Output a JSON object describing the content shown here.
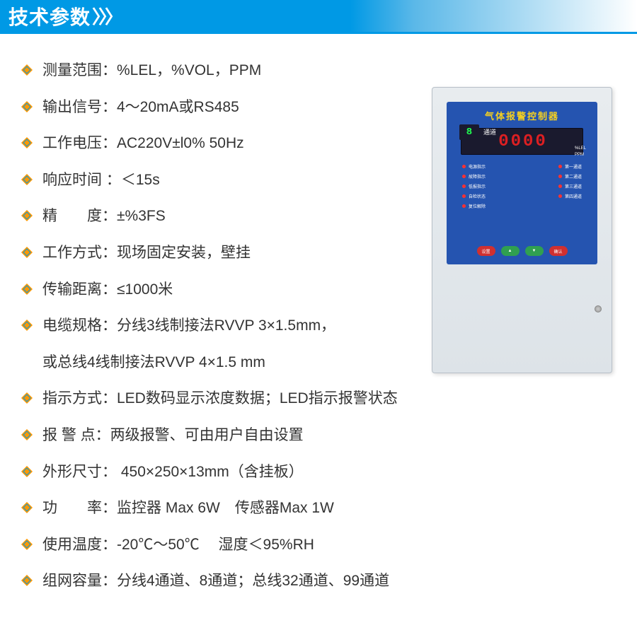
{
  "header": {
    "title": "技术参数",
    "arrows": "〉〉〉"
  },
  "bullet": {
    "fill": "#ff9800",
    "stroke": "#0099e5"
  },
  "specs": [
    {
      "text": "测量范围：%LEL，%VOL，PPM"
    },
    {
      "text": "输出信号：4～20mA或RS485"
    },
    {
      "text": "工作电压：AC220V±l0% 50Hz"
    },
    {
      "text": "响应时间 ：＜15s"
    },
    {
      "text": "精　　度：±%3FS"
    },
    {
      "text": "工作方式：现场固定安装，壁挂"
    },
    {
      "text": "传输距离：≤1000米"
    },
    {
      "text": "电缆规格：分线3线制接法RVVP 3×1.5mm，",
      "continuation": "或总线4线制接法RVVP 4×1.5 mm"
    },
    {
      "text": "指示方式：LED数码显示浓度数据；LED指示报警状态"
    },
    {
      "text": "报 警 点：两级报警、可由用户自由设置"
    },
    {
      "text": "外形尺寸： 450×250×13mm（含挂板）"
    },
    {
      "text": "功　　率：监控器 Max 6W　传感器Max 1W"
    },
    {
      "text": "使用温度：-20℃～50℃　 湿度＜95%RH"
    },
    {
      "text": "组网容量：分线4通道、8通道；总线32通道、99通道"
    }
  ],
  "device": {
    "title": "气体报警控制器",
    "channel_digit": "8",
    "channel_label": "通道",
    "display_digits": [
      "0",
      "0",
      "0",
      "0"
    ],
    "unit1": "%LEL",
    "unit2": "PPM",
    "left_leds": [
      "电源指示",
      "故障指示",
      "低报指示",
      "自检状态",
      "复位解除"
    ],
    "right_leds": [
      "第一通道",
      "第二通道",
      "第三通道",
      "第四通道"
    ],
    "btn1": "设置",
    "btn2": "▲",
    "btn3": "▼",
    "btn4": "确认"
  },
  "colors": {
    "header_bg": "#0099e5",
    "text": "#333333",
    "panel_bg": "#2554b0",
    "panel_title": "#f5d020",
    "led_red": "#ff2020",
    "led_green": "#20ff50",
    "device_body": "#dde3e8"
  },
  "fonts": {
    "header_size": 28,
    "spec_size": 21,
    "device_title_size": 13
  }
}
